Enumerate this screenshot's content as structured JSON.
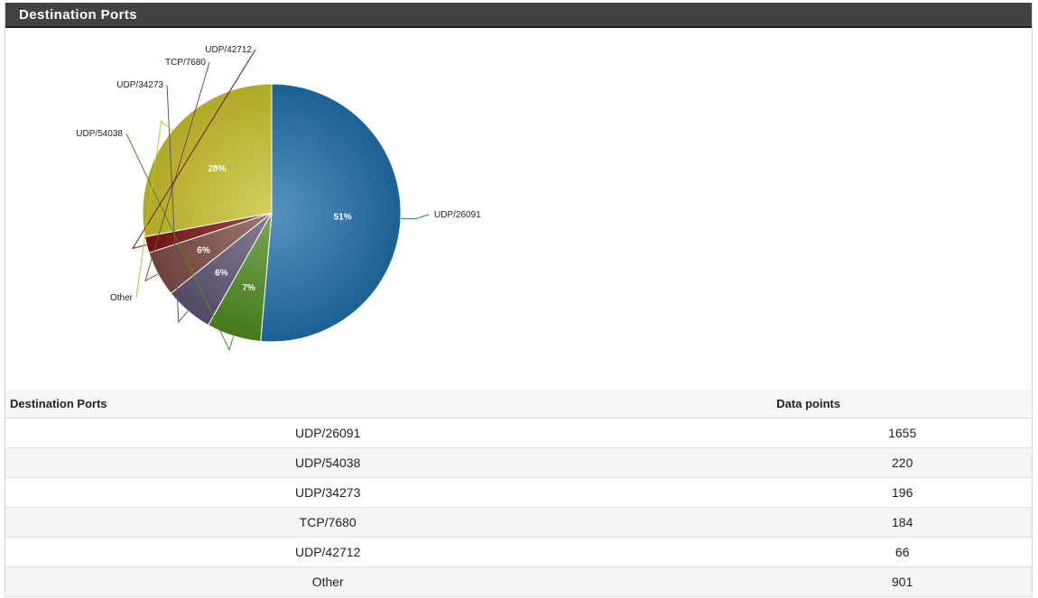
{
  "panel": {
    "title": "Destination Ports"
  },
  "colors": {
    "header_bg": "#424242",
    "slices": [
      "#1f6ea8",
      "#4e8a1d",
      "#5e5372",
      "#7c4b42",
      "#7b1414",
      "#c7c02c"
    ]
  },
  "chart_data": {
    "type": "pie",
    "title": "",
    "slices": [
      {
        "label": "UDP/26091",
        "value": 1655,
        "percent_label": "51%"
      },
      {
        "label": "UDP/54038",
        "value": 220,
        "percent_label": "7%"
      },
      {
        "label": "UDP/34273",
        "value": 196,
        "percent_label": "6%"
      },
      {
        "label": "TCP/7680",
        "value": 184,
        "percent_label": "6%"
      },
      {
        "label": "UDP/42712",
        "value": 66,
        "percent_label": ""
      },
      {
        "label": "Other",
        "value": 901,
        "percent_label": "28%"
      }
    ]
  },
  "table": {
    "headers": [
      "Destination Ports",
      "Data points"
    ],
    "rows": [
      {
        "port": "UDP/26091",
        "points": "1655"
      },
      {
        "port": "UDP/54038",
        "points": "220"
      },
      {
        "port": "UDP/34273",
        "points": "196"
      },
      {
        "port": "TCP/7680",
        "points": "184"
      },
      {
        "port": "UDP/42712",
        "points": "66"
      },
      {
        "port": "Other",
        "points": "901"
      }
    ]
  }
}
